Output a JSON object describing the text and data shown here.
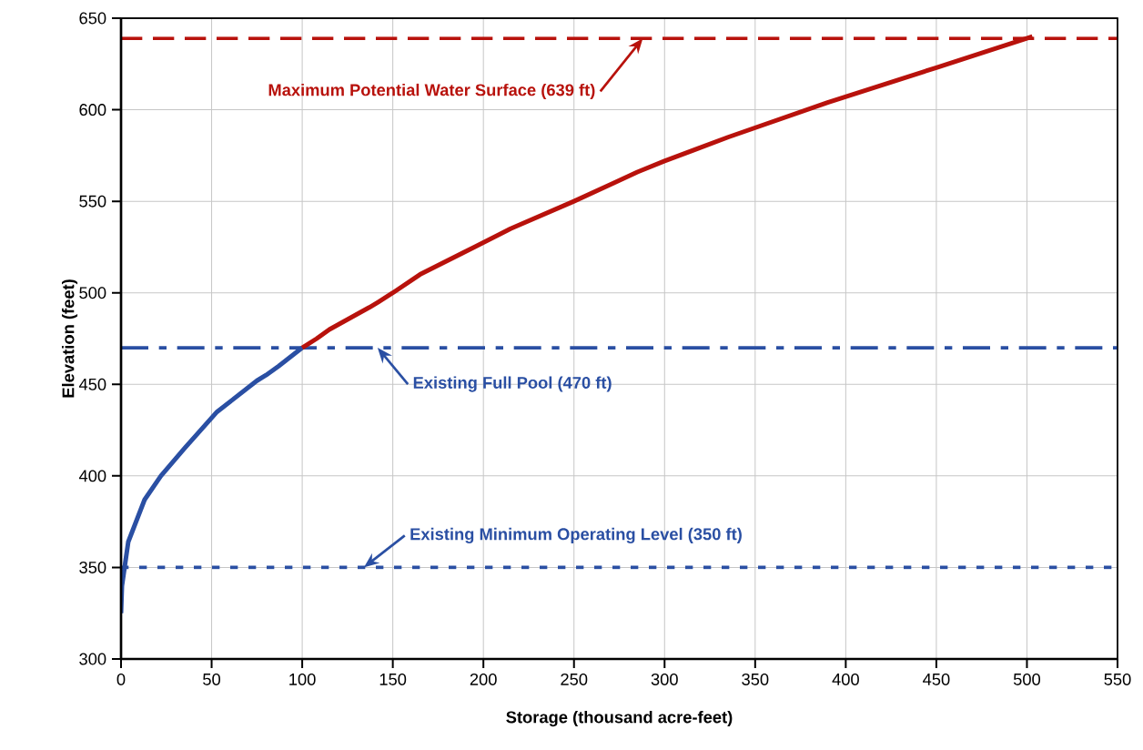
{
  "chart_data": {
    "type": "line",
    "xlabel": "Storage (thousand acre-feet)",
    "ylabel": "Elevation (feet)",
    "xlim": [
      0,
      550
    ],
    "ylim": [
      300,
      650
    ],
    "xticks": [
      0,
      50,
      100,
      150,
      200,
      250,
      300,
      350,
      400,
      450,
      500,
      550
    ],
    "yticks": [
      300,
      350,
      400,
      450,
      500,
      550,
      600,
      650
    ],
    "grid": true,
    "marker": "none",
    "line_style": "solid",
    "series": [
      {
        "color": "#2a4fa3",
        "x": [
          0,
          0.5,
          4,
          13,
          22,
          35,
          53,
          75,
          80,
          87,
          100
        ],
        "values": [
          325,
          340,
          364,
          387,
          400,
          415,
          435,
          452,
          455,
          460,
          470
        ]
      },
      {
        "color": "#b8120c",
        "x": [
          100,
          108,
          115,
          137,
          142,
          150,
          165,
          195,
          215,
          250,
          272,
          285,
          300,
          335,
          390,
          450,
          503
        ],
        "values": [
          470,
          475,
          480,
          492,
          495,
          500,
          510,
          525,
          535,
          550,
          560,
          566,
          572,
          585,
          604,
          623,
          640
        ]
      }
    ],
    "ref_lines": [
      {
        "axis": "y",
        "value": 639,
        "label": "Maximum Potential Water Surface (639 ft)",
        "color": "#b8120c",
        "line_style": "dashed"
      },
      {
        "axis": "y",
        "value": 470,
        "label": "Existing Full Pool (470 ft)",
        "color": "#2a4fa3",
        "line_style": "dashdot"
      },
      {
        "axis": "y",
        "value": 350,
        "label": "Existing Minimum Operating Level (350 ft)",
        "color": "#2a4fa3",
        "line_style": "dotted"
      }
    ]
  }
}
